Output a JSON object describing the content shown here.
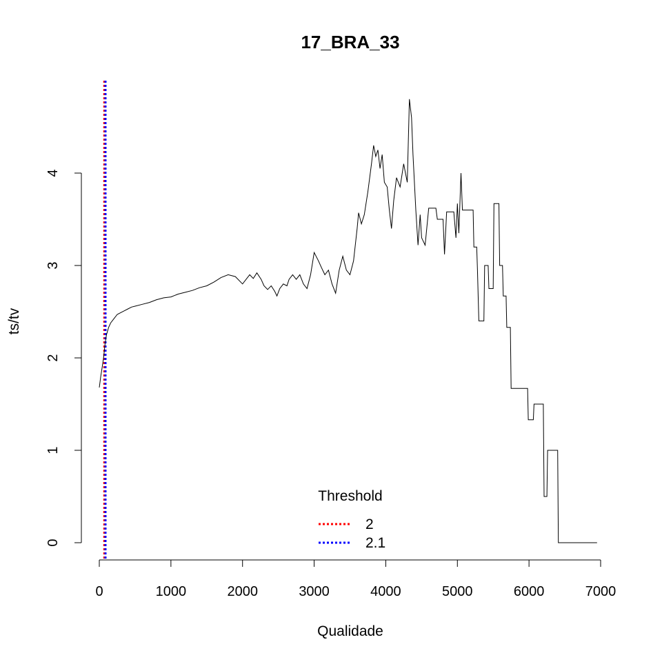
{
  "chart_data": {
    "type": "line",
    "title": "17_BRA_33",
    "xlabel": "Qualidade",
    "ylabel": "ts/tv",
    "xlim": [
      0,
      7000
    ],
    "ylim": [
      -0.2,
      5.0
    ],
    "x_ticks": [
      "0",
      "1000",
      "2000",
      "3000",
      "4000",
      "5000",
      "6000",
      "7000"
    ],
    "y_ticks": [
      "0",
      "1",
      "2",
      "3",
      "4"
    ],
    "grid": false,
    "legend": {
      "title": "Threshold",
      "position": "bottom-center",
      "entries": [
        {
          "label": "2",
          "color": "#ff0000",
          "style": "dotted"
        },
        {
          "label": "2.1",
          "color": "#0000ff",
          "style": "dotted"
        }
      ]
    },
    "threshold_lines": [
      {
        "x": 70,
        "color": "#ff0000",
        "style": "dotted"
      },
      {
        "x": 72,
        "color": "#0000ff",
        "style": "dotted"
      }
    ],
    "series": [
      {
        "color": "#000000",
        "points": [
          [
            0,
            1.68
          ],
          [
            20,
            1.8
          ],
          [
            40,
            1.9
          ],
          [
            60,
            2.0
          ],
          [
            80,
            2.15
          ],
          [
            100,
            2.25
          ],
          [
            130,
            2.33
          ],
          [
            160,
            2.38
          ],
          [
            200,
            2.42
          ],
          [
            250,
            2.47
          ],
          [
            300,
            2.49
          ],
          [
            350,
            2.51
          ],
          [
            400,
            2.53
          ],
          [
            450,
            2.55
          ],
          [
            500,
            2.56
          ],
          [
            600,
            2.58
          ],
          [
            700,
            2.6
          ],
          [
            800,
            2.63
          ],
          [
            900,
            2.65
          ],
          [
            1000,
            2.66
          ],
          [
            1100,
            2.69
          ],
          [
            1200,
            2.71
          ],
          [
            1300,
            2.73
          ],
          [
            1400,
            2.76
          ],
          [
            1500,
            2.78
          ],
          [
            1600,
            2.82
          ],
          [
            1700,
            2.87
          ],
          [
            1800,
            2.9
          ],
          [
            1900,
            2.88
          ],
          [
            2000,
            2.8
          ],
          [
            2050,
            2.85
          ],
          [
            2100,
            2.9
          ],
          [
            2150,
            2.86
          ],
          [
            2200,
            2.92
          ],
          [
            2260,
            2.85
          ],
          [
            2300,
            2.78
          ],
          [
            2350,
            2.74
          ],
          [
            2400,
            2.78
          ],
          [
            2450,
            2.72
          ],
          [
            2480,
            2.67
          ],
          [
            2520,
            2.75
          ],
          [
            2570,
            2.8
          ],
          [
            2620,
            2.78
          ],
          [
            2650,
            2.85
          ],
          [
            2700,
            2.9
          ],
          [
            2750,
            2.85
          ],
          [
            2800,
            2.9
          ],
          [
            2850,
            2.8
          ],
          [
            2900,
            2.75
          ],
          [
            2950,
            2.9
          ],
          [
            3000,
            3.14
          ],
          [
            3060,
            3.05
          ],
          [
            3100,
            2.98
          ],
          [
            3150,
            2.9
          ],
          [
            3200,
            2.95
          ],
          [
            3250,
            2.8
          ],
          [
            3300,
            2.7
          ],
          [
            3350,
            2.95
          ],
          [
            3400,
            3.1
          ],
          [
            3450,
            2.95
          ],
          [
            3500,
            2.9
          ],
          [
            3550,
            3.05
          ],
          [
            3600,
            3.4
          ],
          [
            3620,
            3.57
          ],
          [
            3660,
            3.45
          ],
          [
            3700,
            3.55
          ],
          [
            3750,
            3.8
          ],
          [
            3800,
            4.1
          ],
          [
            3830,
            4.3
          ],
          [
            3860,
            4.18
          ],
          [
            3890,
            4.25
          ],
          [
            3920,
            4.05
          ],
          [
            3950,
            4.2
          ],
          [
            3980,
            3.9
          ],
          [
            4020,
            3.85
          ],
          [
            4050,
            3.6
          ],
          [
            4080,
            3.4
          ],
          [
            4110,
            3.7
          ],
          [
            4150,
            3.95
          ],
          [
            4200,
            3.85
          ],
          [
            4250,
            4.1
          ],
          [
            4300,
            3.9
          ],
          [
            4330,
            4.8
          ],
          [
            4360,
            4.6
          ],
          [
            4380,
            4.2
          ],
          [
            4420,
            3.6
          ],
          [
            4450,
            3.22
          ],
          [
            4480,
            3.55
          ],
          [
            4500,
            3.3
          ],
          [
            4550,
            3.22
          ],
          [
            4600,
            3.62
          ],
          [
            4700,
            3.62
          ],
          [
            4720,
            3.5
          ],
          [
            4800,
            3.5
          ],
          [
            4820,
            3.12
          ],
          [
            4850,
            3.58
          ],
          [
            4950,
            3.58
          ],
          [
            4980,
            3.3
          ],
          [
            5000,
            3.67
          ],
          [
            5020,
            3.35
          ],
          [
            5050,
            4.0
          ],
          [
            5070,
            3.6
          ],
          [
            5220,
            3.6
          ],
          [
            5230,
            3.2
          ],
          [
            5270,
            3.2
          ],
          [
            5280,
            2.95
          ],
          [
            5300,
            2.4
          ],
          [
            5370,
            2.4
          ],
          [
            5380,
            3.0
          ],
          [
            5430,
            3.0
          ],
          [
            5440,
            2.75
          ],
          [
            5500,
            2.75
          ],
          [
            5510,
            3.67
          ],
          [
            5580,
            3.67
          ],
          [
            5590,
            3.0
          ],
          [
            5630,
            3.0
          ],
          [
            5640,
            2.67
          ],
          [
            5680,
            2.67
          ],
          [
            5690,
            2.33
          ],
          [
            5740,
            2.33
          ],
          [
            5750,
            1.67
          ],
          [
            5980,
            1.67
          ],
          [
            5990,
            1.33
          ],
          [
            6060,
            1.33
          ],
          [
            6070,
            1.5
          ],
          [
            6200,
            1.5
          ],
          [
            6210,
            0.5
          ],
          [
            6250,
            0.5
          ],
          [
            6260,
            1.0
          ],
          [
            6400,
            1.0
          ],
          [
            6410,
            0.0
          ],
          [
            6950,
            0.0
          ]
        ]
      }
    ]
  }
}
